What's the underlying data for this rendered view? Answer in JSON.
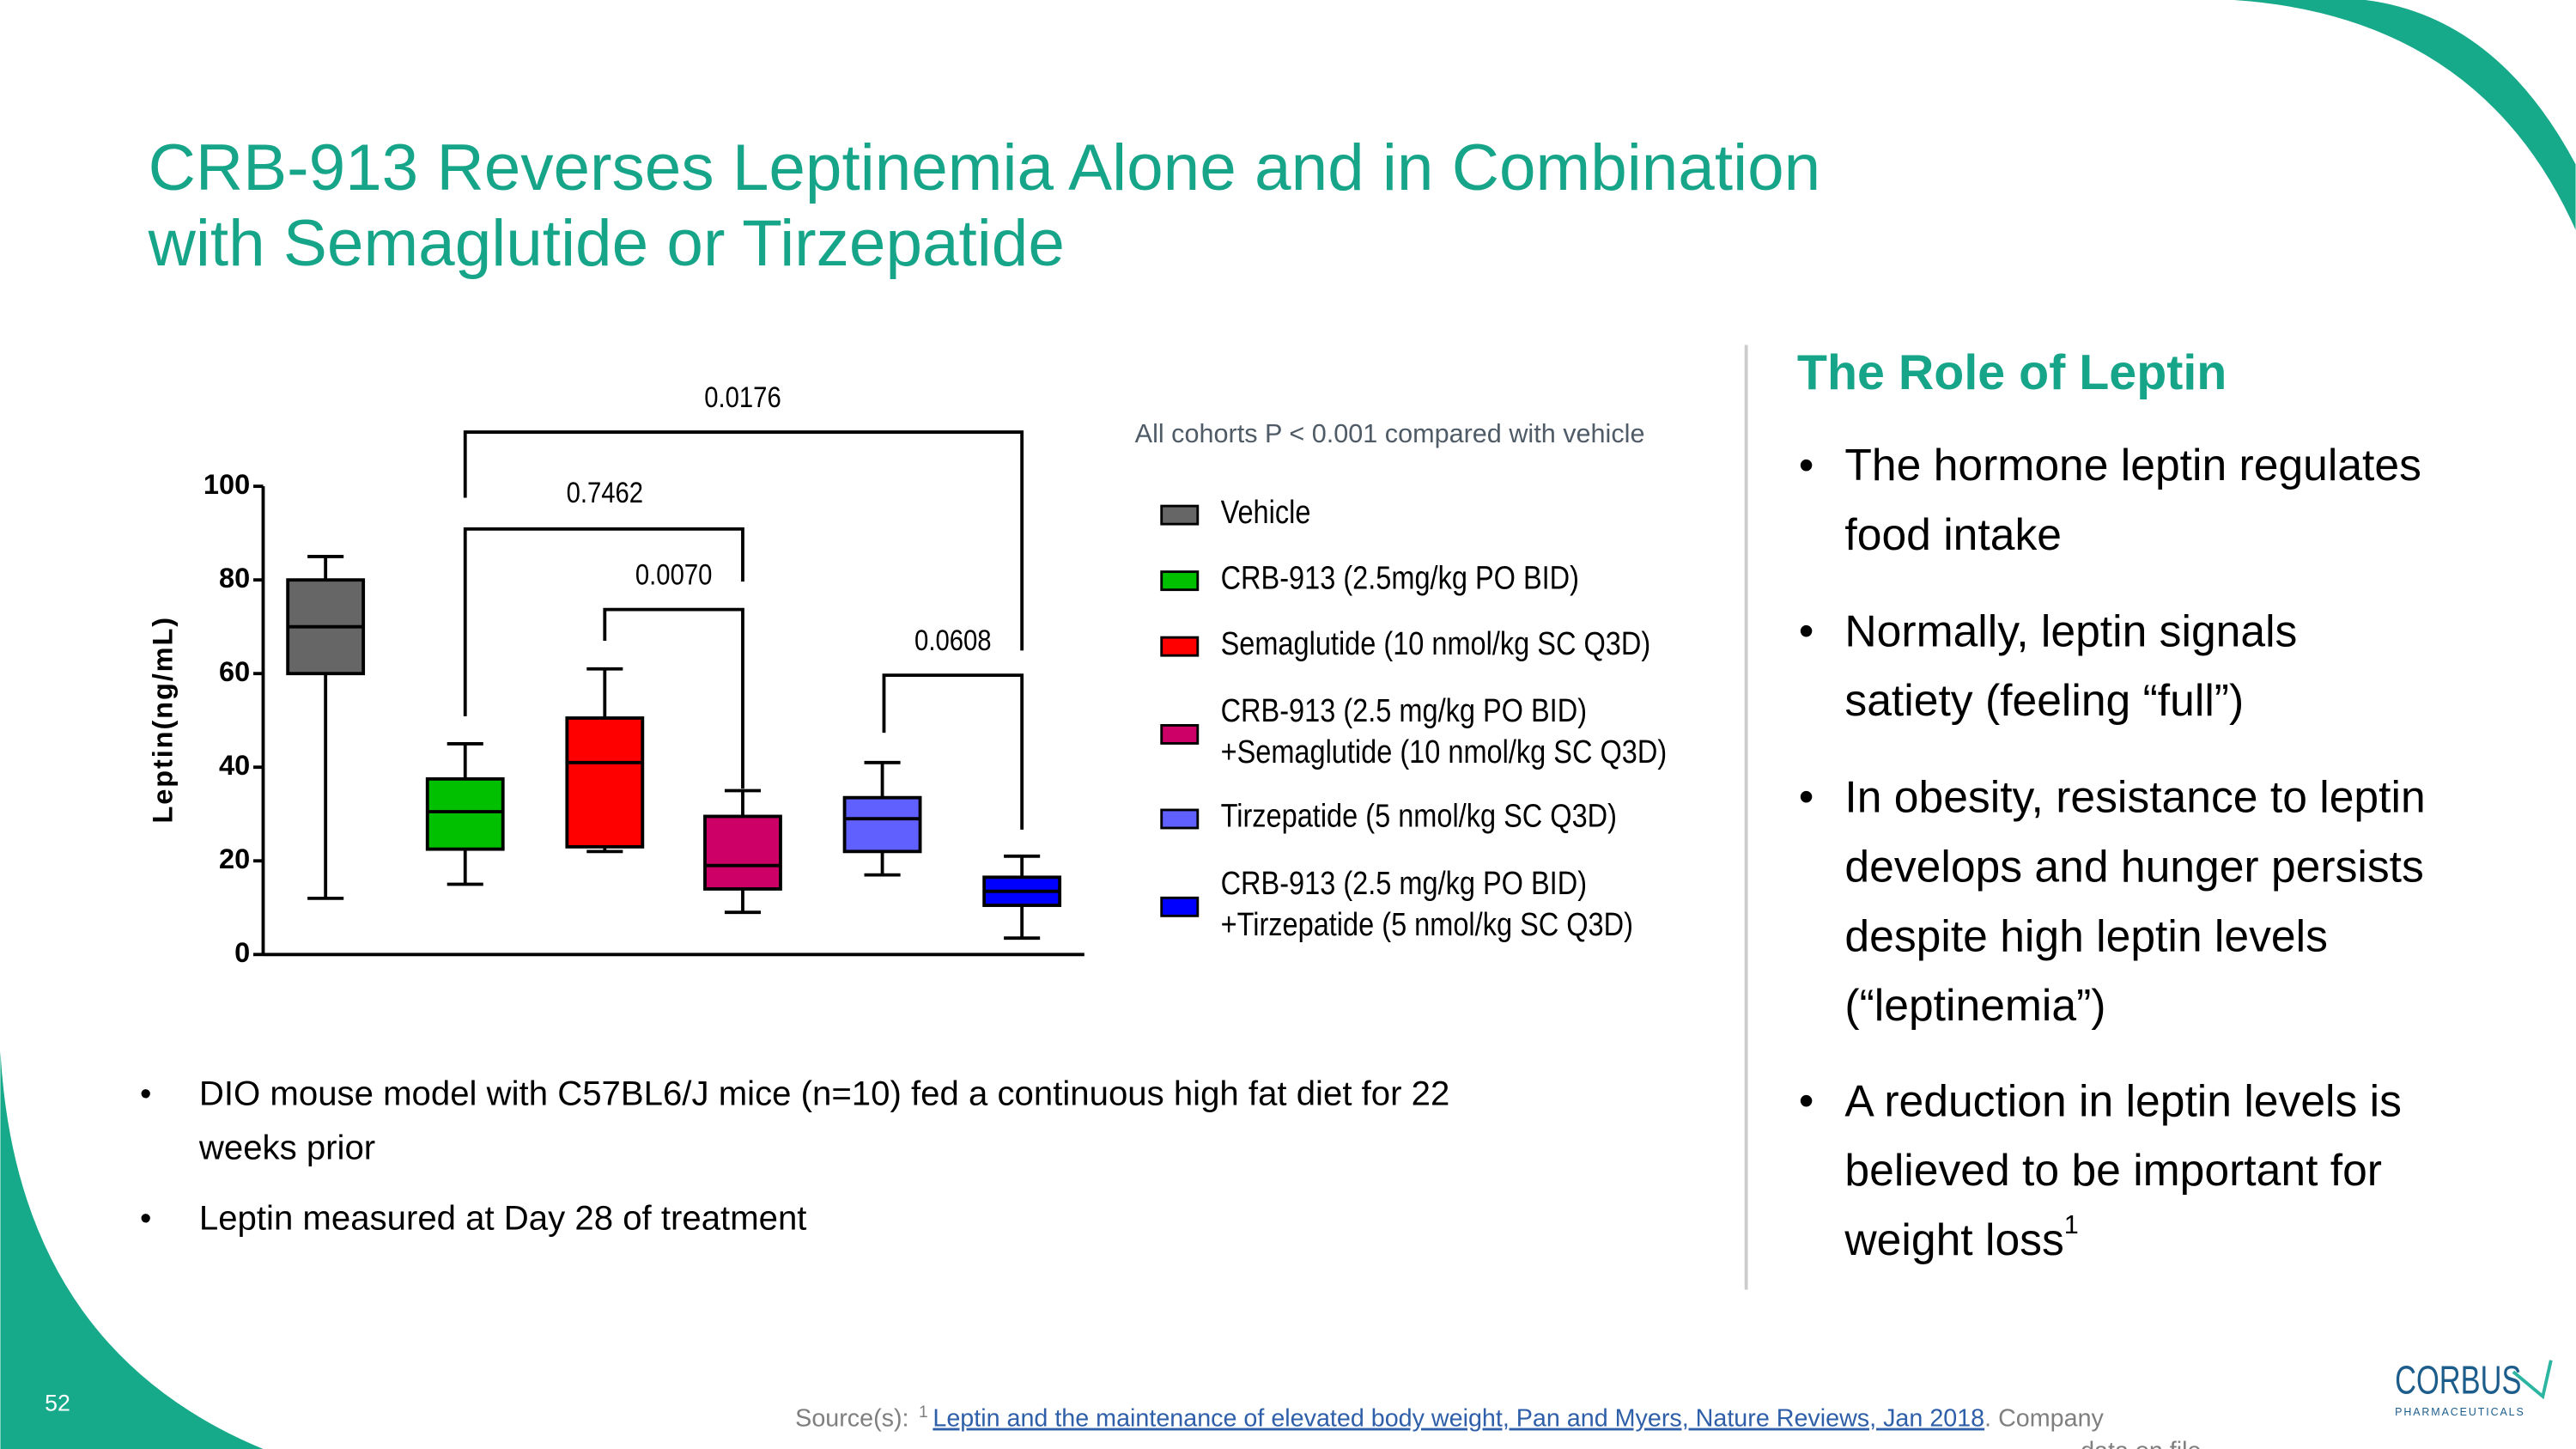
{
  "title": [
    "CRB-913 Reverses Leptinemia Alone and in Combination",
    "with Semaglutide or Tirzepatide"
  ],
  "chart_data": {
    "type": "box",
    "ylabel": "Leptin(ng/mL)",
    "note": "All cohorts P < 0.001 compared with vehicle",
    "ylim": [
      0,
      100
    ],
    "yticks": [
      0,
      20,
      40,
      60,
      80,
      100
    ],
    "series": [
      {
        "name": [
          "Vehicle"
        ],
        "color": "#666666",
        "values": [
          12,
          60,
          70,
          80,
          85
        ]
      },
      {
        "name": [
          "CRB-913 (2.5mg/kg PO BID)"
        ],
        "color": "#00c000",
        "values": [
          15,
          22.5,
          30.5,
          37.5,
          45
        ]
      },
      {
        "name": [
          "Semaglutide (10 nmol/kg SC Q3D)"
        ],
        "color": "#ff0000",
        "values": [
          22,
          23,
          41,
          50.5,
          61
        ]
      },
      {
        "name": [
          "CRB-913 (2.5 mg/kg PO BID)",
          "+Semaglutide (10 nmol/kg SC Q3D)"
        ],
        "color": "#cc0066",
        "values": [
          9,
          14,
          19,
          29.5,
          35
        ]
      },
      {
        "name": [
          "Tirzepatide (5 nmol/kg SC Q3D)"
        ],
        "color": "#6060ff",
        "values": [
          17,
          22,
          29,
          33.5,
          41
        ]
      },
      {
        "name": [
          "CRB-913 (2.5 mg/kg PO BID)",
          "+Tirzepatide (5 nmol/kg SC Q3D)"
        ],
        "color": "#0000ff",
        "values": [
          3.5,
          10.5,
          13.5,
          16.5,
          21
        ]
      }
    ],
    "annotations": [
      "0.0176",
      "0.7462",
      "0.0070",
      "0.0608"
    ]
  },
  "study_notes": [
    [
      "DIO mouse model with C57BL6/J mice (n=10) fed a continuous high fat diet for 22",
      "weeks prior"
    ],
    [
      "Leptin measured at Day 28 of treatment"
    ]
  ],
  "sidebar": {
    "heading": "The Role of Leptin",
    "bullets": [
      [
        "The hormone leptin regulates",
        "food intake"
      ],
      [
        "Normally, leptin signals",
        "satiety (feeling “full”)"
      ],
      [
        "In obesity, resistance to leptin",
        "develops and hunger persists",
        "despite high leptin levels",
        "(“leptinemia”)"
      ],
      [
        "A reduction in leptin levels is",
        "believed to be important for",
        "weight loss"
      ]
    ],
    "footnote_mark": "1"
  },
  "page_number": "52",
  "source": {
    "label": "Source(s):",
    "mark": "1",
    "link": "Leptin and the maintenance of elevated body weight, Pan and Myers, Nature Reviews, Jan 2018",
    "rest": [
      ". Company",
      "data on file"
    ]
  },
  "logo": {
    "name": "CORBUS",
    "tagline": "PHARMACEUTICALS"
  }
}
